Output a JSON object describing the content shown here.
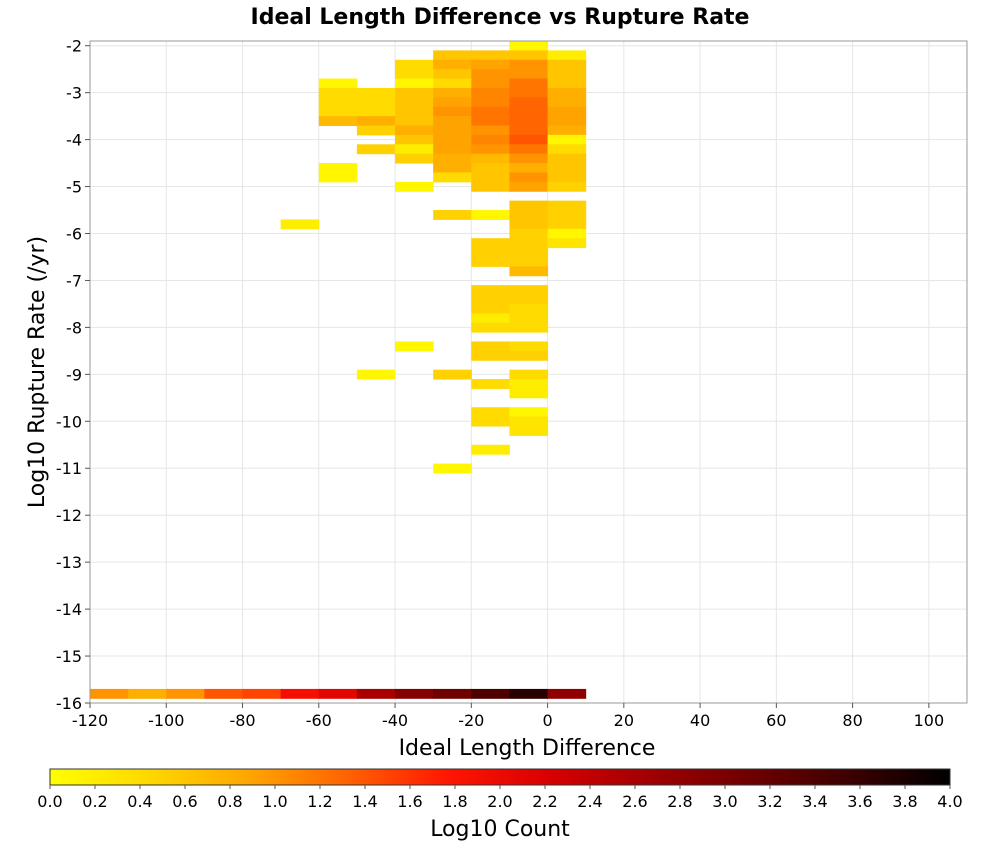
{
  "chart_data": {
    "type": "heatmap",
    "title": "Ideal Length Difference vs Rupture Rate",
    "xlabel": "Ideal Length Difference",
    "ylabel": "Log10 Rupture Rate (/yr)",
    "xlim": [
      -120,
      110
    ],
    "ylim": [
      -16,
      -1.9
    ],
    "xticks": [
      "-120",
      "-100",
      "-80",
      "-60",
      "-40",
      "-20",
      "0",
      "20",
      "40",
      "60",
      "80",
      "100"
    ],
    "yticks": [
      "-2",
      "-3",
      "-4",
      "-5",
      "-6",
      "-7",
      "-8",
      "-9",
      "-10",
      "-11",
      "-12",
      "-13",
      "-14",
      "-15",
      "-16"
    ],
    "grid": true,
    "bin_width_x": 10,
    "bin_height_y": 0.2,
    "colorbar": {
      "label": "Log10 Count",
      "min": 0.0,
      "max": 4.0,
      "ticks": [
        "0.0",
        "0.2",
        "0.4",
        "0.6",
        "0.8",
        "1.0",
        "1.2",
        "1.4",
        "1.6",
        "1.8",
        "2.0",
        "2.2",
        "2.4",
        "2.6",
        "2.8",
        "3.0",
        "3.2",
        "3.4",
        "3.6",
        "3.8",
        "4.0"
      ],
      "colors": [
        "#ffff00",
        "#ffd700",
        "#ffa500",
        "#ff6000",
        "#ff1500",
        "#d70000",
        "#a00000",
        "#6e0000",
        "#3c0000",
        "#000000"
      ]
    },
    "cells": [
      {
        "x": -10,
        "y": -2.0,
        "z": 0.1
      },
      {
        "x": -30,
        "y": -2.2,
        "z": 0.6
      },
      {
        "x": -20,
        "y": -2.2,
        "z": 0.6
      },
      {
        "x": -10,
        "y": -2.2,
        "z": 0.6
      },
      {
        "x": 0,
        "y": -2.2,
        "z": 0.2
      },
      {
        "x": -40,
        "y": -2.4,
        "z": 0.4
      },
      {
        "x": -30,
        "y": -2.4,
        "z": 0.8
      },
      {
        "x": -20,
        "y": -2.4,
        "z": 0.9
      },
      {
        "x": -10,
        "y": -2.4,
        "z": 1.0
      },
      {
        "x": 0,
        "y": -2.4,
        "z": 0.6
      },
      {
        "x": -40,
        "y": -2.6,
        "z": 0.4
      },
      {
        "x": -30,
        "y": -2.6,
        "z": 0.6
      },
      {
        "x": -20,
        "y": -2.6,
        "z": 1.0
      },
      {
        "x": -10,
        "y": -2.6,
        "z": 1.0
      },
      {
        "x": 0,
        "y": -2.6,
        "z": 0.6
      },
      {
        "x": -60,
        "y": -2.8,
        "z": 0.1
      },
      {
        "x": -40,
        "y": -2.8,
        "z": 0.1
      },
      {
        "x": -30,
        "y": -2.8,
        "z": 0.4
      },
      {
        "x": -20,
        "y": -2.8,
        "z": 1.0
      },
      {
        "x": -10,
        "y": -2.8,
        "z": 1.2
      },
      {
        "x": 0,
        "y": -2.8,
        "z": 0.6
      },
      {
        "x": -60,
        "y": -3.0,
        "z": 0.4
      },
      {
        "x": -50,
        "y": -3.0,
        "z": 0.4
      },
      {
        "x": -40,
        "y": -3.0,
        "z": 0.6
      },
      {
        "x": -30,
        "y": -3.0,
        "z": 0.8
      },
      {
        "x": -20,
        "y": -3.0,
        "z": 1.1
      },
      {
        "x": -10,
        "y": -3.0,
        "z": 1.2
      },
      {
        "x": 0,
        "y": -3.0,
        "z": 0.8
      },
      {
        "x": -60,
        "y": -3.2,
        "z": 0.4
      },
      {
        "x": -50,
        "y": -3.2,
        "z": 0.4
      },
      {
        "x": -40,
        "y": -3.2,
        "z": 0.6
      },
      {
        "x": -30,
        "y": -3.2,
        "z": 0.9
      },
      {
        "x": -20,
        "y": -3.2,
        "z": 1.1
      },
      {
        "x": -10,
        "y": -3.2,
        "z": 1.3
      },
      {
        "x": 0,
        "y": -3.2,
        "z": 0.8
      },
      {
        "x": -60,
        "y": -3.4,
        "z": 0.4
      },
      {
        "x": -50,
        "y": -3.4,
        "z": 0.4
      },
      {
        "x": -40,
        "y": -3.4,
        "z": 0.6
      },
      {
        "x": -30,
        "y": -3.4,
        "z": 1.0
      },
      {
        "x": -20,
        "y": -3.4,
        "z": 1.2
      },
      {
        "x": -10,
        "y": -3.4,
        "z": 1.3
      },
      {
        "x": 0,
        "y": -3.4,
        "z": 0.9
      },
      {
        "x": -60,
        "y": -3.6,
        "z": 0.7
      },
      {
        "x": -50,
        "y": -3.6,
        "z": 0.8
      },
      {
        "x": -40,
        "y": -3.6,
        "z": 0.6
      },
      {
        "x": -30,
        "y": -3.6,
        "z": 0.9
      },
      {
        "x": -20,
        "y": -3.6,
        "z": 1.2
      },
      {
        "x": -10,
        "y": -3.6,
        "z": 1.3
      },
      {
        "x": 0,
        "y": -3.6,
        "z": 0.9
      },
      {
        "x": -50,
        "y": -3.8,
        "z": 0.5
      },
      {
        "x": -40,
        "y": -3.8,
        "z": 0.8
      },
      {
        "x": -30,
        "y": -3.8,
        "z": 0.9
      },
      {
        "x": -20,
        "y": -3.8,
        "z": 1.0
      },
      {
        "x": -10,
        "y": -3.8,
        "z": 1.3
      },
      {
        "x": 0,
        "y": -3.8,
        "z": 0.8
      },
      {
        "x": -40,
        "y": -4.0,
        "z": 0.6
      },
      {
        "x": -30,
        "y": -4.0,
        "z": 0.9
      },
      {
        "x": -20,
        "y": -4.0,
        "z": 1.1
      },
      {
        "x": -10,
        "y": -4.0,
        "z": 1.4
      },
      {
        "x": 0,
        "y": -4.0,
        "z": 0.1
      },
      {
        "x": -50,
        "y": -4.2,
        "z": 0.5
      },
      {
        "x": -40,
        "y": -4.2,
        "z": 0.2
      },
      {
        "x": -30,
        "y": -4.2,
        "z": 0.9
      },
      {
        "x": -20,
        "y": -4.2,
        "z": 1.0
      },
      {
        "x": -10,
        "y": -4.2,
        "z": 1.2
      },
      {
        "x": 0,
        "y": -4.2,
        "z": 0.4
      },
      {
        "x": -40,
        "y": -4.4,
        "z": 0.5
      },
      {
        "x": -30,
        "y": -4.4,
        "z": 0.8
      },
      {
        "x": -20,
        "y": -4.4,
        "z": 0.7
      },
      {
        "x": -10,
        "y": -4.4,
        "z": 1.0
      },
      {
        "x": 0,
        "y": -4.4,
        "z": 0.6
      },
      {
        "x": -60,
        "y": -4.6,
        "z": 0.1
      },
      {
        "x": -30,
        "y": -4.6,
        "z": 0.8
      },
      {
        "x": -20,
        "y": -4.6,
        "z": 0.6
      },
      {
        "x": -10,
        "y": -4.6,
        "z": 0.8
      },
      {
        "x": 0,
        "y": -4.6,
        "z": 0.6
      },
      {
        "x": -60,
        "y": -4.8,
        "z": 0.1
      },
      {
        "x": -30,
        "y": -4.8,
        "z": 0.4
      },
      {
        "x": -20,
        "y": -4.8,
        "z": 0.6
      },
      {
        "x": -10,
        "y": -4.8,
        "z": 1.0
      },
      {
        "x": 0,
        "y": -4.8,
        "z": 0.6
      },
      {
        "x": -40,
        "y": -5.0,
        "z": 0.1
      },
      {
        "x": -20,
        "y": -5.0,
        "z": 0.6
      },
      {
        "x": -10,
        "y": -5.0,
        "z": 0.9
      },
      {
        "x": 0,
        "y": -5.0,
        "z": 0.5
      },
      {
        "x": -70,
        "y": -5.8,
        "z": 0.2
      },
      {
        "x": -10,
        "y": -5.4,
        "z": 0.6
      },
      {
        "x": 0,
        "y": -5.4,
        "z": 0.5
      },
      {
        "x": -30,
        "y": -5.6,
        "z": 0.5
      },
      {
        "x": -20,
        "y": -5.6,
        "z": 0.1
      },
      {
        "x": -10,
        "y": -5.6,
        "z": 0.6
      },
      {
        "x": 0,
        "y": -5.6,
        "z": 0.5
      },
      {
        "x": -10,
        "y": -5.8,
        "z": 0.6
      },
      {
        "x": 0,
        "y": -5.8,
        "z": 0.5
      },
      {
        "x": -10,
        "y": -6.0,
        "z": 0.5
      },
      {
        "x": 0,
        "y": -6.0,
        "z": 0.1
      },
      {
        "x": -20,
        "y": -6.2,
        "z": 0.5
      },
      {
        "x": -10,
        "y": -6.2,
        "z": 0.5
      },
      {
        "x": 0,
        "y": -6.2,
        "z": 0.3
      },
      {
        "x": -20,
        "y": -6.4,
        "z": 0.5
      },
      {
        "x": -10,
        "y": -6.4,
        "z": 0.5
      },
      {
        "x": -20,
        "y": -6.6,
        "z": 0.5
      },
      {
        "x": -10,
        "y": -6.6,
        "z": 0.5
      },
      {
        "x": -10,
        "y": -6.8,
        "z": 0.7
      },
      {
        "x": -20,
        "y": -7.2,
        "z": 0.5
      },
      {
        "x": -10,
        "y": -7.2,
        "z": 0.5
      },
      {
        "x": -20,
        "y": -7.4,
        "z": 0.5
      },
      {
        "x": -10,
        "y": -7.4,
        "z": 0.5
      },
      {
        "x": -20,
        "y": -7.6,
        "z": 0.5
      },
      {
        "x": -10,
        "y": -7.6,
        "z": 0.4
      },
      {
        "x": -20,
        "y": -7.8,
        "z": 0.2
      },
      {
        "x": -10,
        "y": -7.8,
        "z": 0.4
      },
      {
        "x": -20,
        "y": -8.0,
        "z": 0.4
      },
      {
        "x": -10,
        "y": -8.0,
        "z": 0.4
      },
      {
        "x": -40,
        "y": -8.4,
        "z": 0.1
      },
      {
        "x": -20,
        "y": -8.4,
        "z": 0.5
      },
      {
        "x": -10,
        "y": -8.4,
        "z": 0.4
      },
      {
        "x": -20,
        "y": -8.6,
        "z": 0.5
      },
      {
        "x": -10,
        "y": -8.6,
        "z": 0.5
      },
      {
        "x": -50,
        "y": -9.0,
        "z": 0.1
      },
      {
        "x": -30,
        "y": -9.0,
        "z": 0.5
      },
      {
        "x": -10,
        "y": -9.0,
        "z": 0.4
      },
      {
        "x": -20,
        "y": -9.2,
        "z": 0.4
      },
      {
        "x": -10,
        "y": -9.2,
        "z": 0.2
      },
      {
        "x": -10,
        "y": -9.4,
        "z": 0.2
      },
      {
        "x": -20,
        "y": -9.8,
        "z": 0.4
      },
      {
        "x": -10,
        "y": -9.8,
        "z": 0.1
      },
      {
        "x": -20,
        "y": -10.0,
        "z": 0.4
      },
      {
        "x": -10,
        "y": -10.0,
        "z": 0.3
      },
      {
        "x": -10,
        "y": -10.2,
        "z": 0.3
      },
      {
        "x": -20,
        "y": -10.6,
        "z": 0.2
      },
      {
        "x": -30,
        "y": -11.0,
        "z": 0.1
      },
      {
        "x": -120,
        "y": -15.8,
        "z": 1.0
      },
      {
        "x": -110,
        "y": -15.8,
        "z": 0.8
      },
      {
        "x": -100,
        "y": -15.8,
        "z": 1.0
      },
      {
        "x": -90,
        "y": -15.8,
        "z": 1.4
      },
      {
        "x": -80,
        "y": -15.8,
        "z": 1.5
      },
      {
        "x": -70,
        "y": -15.8,
        "z": 1.9
      },
      {
        "x": -60,
        "y": -15.8,
        "z": 2.1
      },
      {
        "x": -50,
        "y": -15.8,
        "z": 2.6
      },
      {
        "x": -40,
        "y": -15.8,
        "z": 2.9
      },
      {
        "x": -30,
        "y": -15.8,
        "z": 3.1
      },
      {
        "x": -20,
        "y": -15.8,
        "z": 3.4
      },
      {
        "x": -10,
        "y": -15.8,
        "z": 3.7
      },
      {
        "x": 0,
        "y": -15.8,
        "z": 2.8
      }
    ]
  }
}
